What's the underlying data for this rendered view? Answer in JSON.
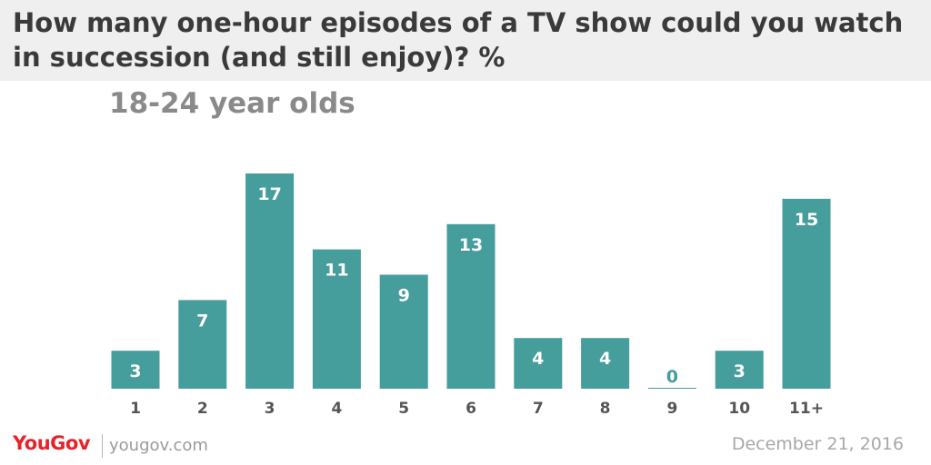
{
  "header": {
    "title": "How many one-hour episodes of a TV show could you watch in succession (and still enjoy)? %",
    "subtitle": "18-24 year olds"
  },
  "footer": {
    "brand": "YouGov",
    "site": "yougov.com",
    "date": "December 21, 2016"
  },
  "colors": {
    "bar": "#459d9c",
    "bar_label": "#ffffff",
    "zero_label": "#459d9c",
    "tick_label": "#555555"
  },
  "chart_data": {
    "type": "bar",
    "title": "How many one-hour episodes of a TV show could you watch in succession (and still enjoy)? %",
    "subtitle": "18-24 year olds",
    "categories": [
      "1",
      "2",
      "3",
      "4",
      "5",
      "6",
      "7",
      "8",
      "9",
      "10",
      "11+"
    ],
    "values": [
      3,
      7,
      17,
      11,
      9,
      13,
      4,
      4,
      0,
      3,
      15
    ],
    "xlabel": "",
    "ylabel": "",
    "ylim": [
      0,
      17
    ],
    "grid": false,
    "legend": "none"
  }
}
